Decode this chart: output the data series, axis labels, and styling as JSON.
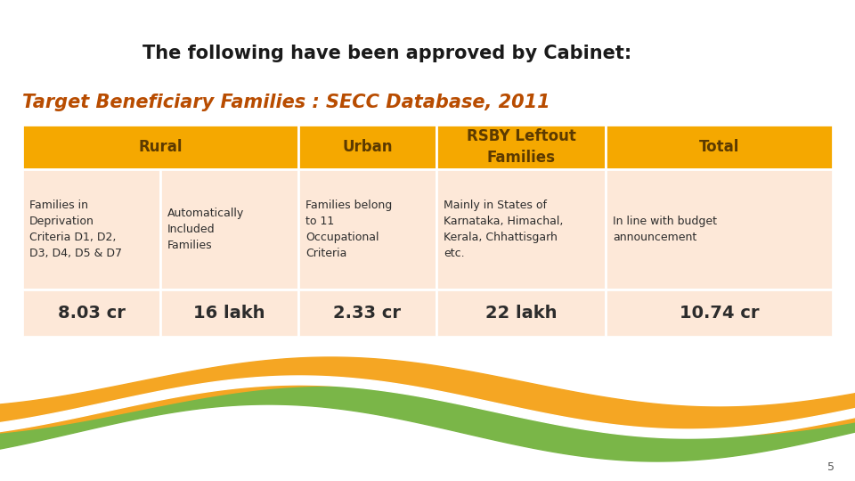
{
  "title": "The following have been approved by Cabinet:",
  "subtitle": "Target Beneficiary Families : SECC Database, 2011",
  "title_color": "#1a1a1a",
  "subtitle_color": "#b84c00",
  "bg_color": "#ffffff",
  "header_bg": "#f5a800",
  "header_text_color": "#5c3a00",
  "row_bg": "#fde8d8",
  "row_text_color": "#2c2c2c",
  "value_text_color": "#2c2c2c",
  "headers": [
    "Rural",
    "Urban",
    "RSBY Leftout\nFamilies",
    "Total"
  ],
  "col1_sub_a": "Families in\nDeprivation\nCriteria D1, D2,\nD3, D4, D5 & D7",
  "col1_sub_b": "Automatically\nIncluded\nFamilies",
  "col2_sub": "Families belong\nto 11\nOccupational\nCriteria",
  "col3_sub": "Mainly in States of\nKarnataka, Himachal,\nKerala, Chhattisgarh\netc.",
  "col4_sub": "In line with budget\nannouncement",
  "values": [
    "8.03 cr",
    "16 lakh",
    "2.33 cr",
    "22 lakh",
    "10.74 cr"
  ],
  "wave_orange": "#f5a623",
  "wave_green": "#7ab648",
  "wave_white": "#ffffff",
  "page_num": "5"
}
